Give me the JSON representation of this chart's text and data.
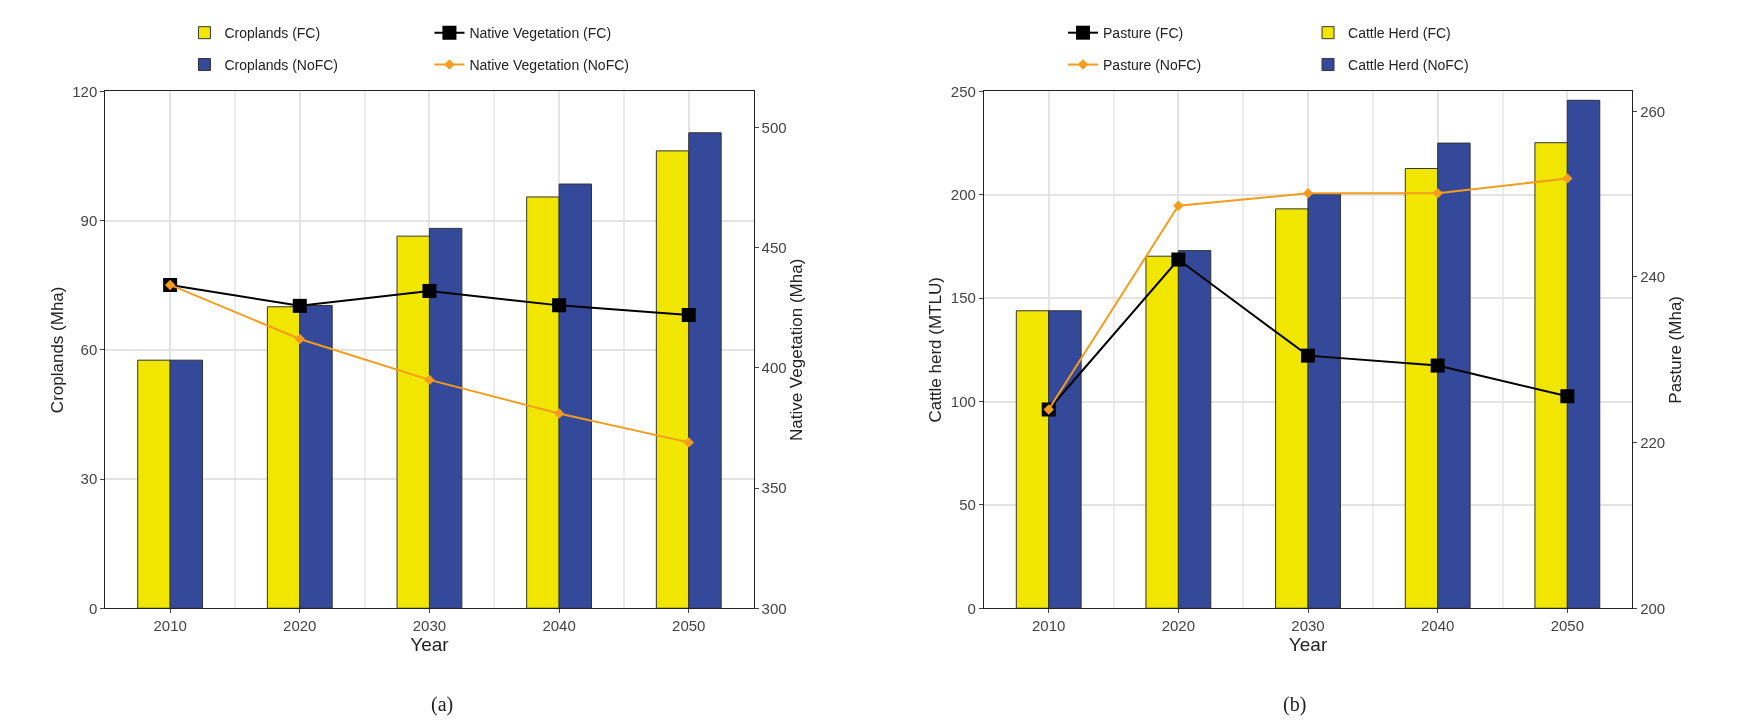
{
  "chart_data": [
    {
      "type": "bar",
      "xlabel": "Year",
      "ylabel": "Croplands (Mha)",
      "y2label": "Native Vegetation (Mha)",
      "categories": [
        "2010",
        "2020",
        "2030",
        "2040",
        "2050"
      ],
      "ylim": [
        0,
        120
      ],
      "yticks": [
        0,
        30,
        60,
        90,
        120
      ],
      "y2lim": [
        300,
        515
      ],
      "y2ticks": [
        300,
        350,
        400,
        450,
        500
      ],
      "grid": true,
      "legend": "top",
      "annotations": [
        "(a)"
      ],
      "series": [
        {
          "name": "Croplands (FC)",
          "color": "#f0e600",
          "values": [
            57.6,
            70.0,
            86.4,
            95.5,
            106.2
          ]
        },
        {
          "name": "Native Vegetation (FC)",
          "type": "line",
          "axis": "y2",
          "marker": "square",
          "color": "#000000",
          "values": [
            434.5,
            425.8,
            432,
            426,
            422
          ]
        },
        {
          "name": "Croplands (NoFC)",
          "color": "#34499a",
          "values": [
            57.6,
            70.3,
            88.2,
            98.5,
            110.4
          ]
        },
        {
          "name": "Native Vegetation (NoFC)",
          "type": "line",
          "axis": "y2",
          "marker": "diamond",
          "color": "#f39c1e",
          "values": [
            434.5,
            412,
            395,
            381,
            369
          ]
        }
      ]
    },
    {
      "type": "bar",
      "xlabel": "Year",
      "ylabel": "Cattle herd (MTLU)",
      "y2label": "Pasture (Mha)",
      "categories": [
        "2010",
        "2020",
        "2030",
        "2040",
        "2050"
      ],
      "ylim": [
        0,
        250
      ],
      "yticks": [
        0,
        50,
        100,
        150,
        200,
        250
      ],
      "y2lim": [
        200,
        262.4
      ],
      "y2ticks": [
        200,
        220,
        240,
        260
      ],
      "grid": true,
      "legend": "top",
      "annotations": [
        "(b)"
      ],
      "series": [
        {
          "name": "Pasture (FC)",
          "type": "line",
          "axis": "y2",
          "marker": "square",
          "color": "#000000",
          "values": [
            224,
            242.1,
            230.5,
            229.3,
            225.6
          ]
        },
        {
          "name": "Cattle Herd (FC)",
          "color": "#f0e600",
          "values": [
            143.9,
            170.3,
            193.2,
            212.7,
            225.2
          ]
        },
        {
          "name": "Pasture (NoFC)",
          "type": "line",
          "axis": "y2",
          "marker": "diamond",
          "color": "#f39c1e",
          "values": [
            224,
            248.6,
            250.1,
            250.1,
            251.9
          ]
        },
        {
          "name": "Cattle Herd (NoFC)",
          "color": "#34499a",
          "values": [
            143.9,
            173,
            200.4,
            225,
            245.7
          ]
        }
      ]
    }
  ]
}
